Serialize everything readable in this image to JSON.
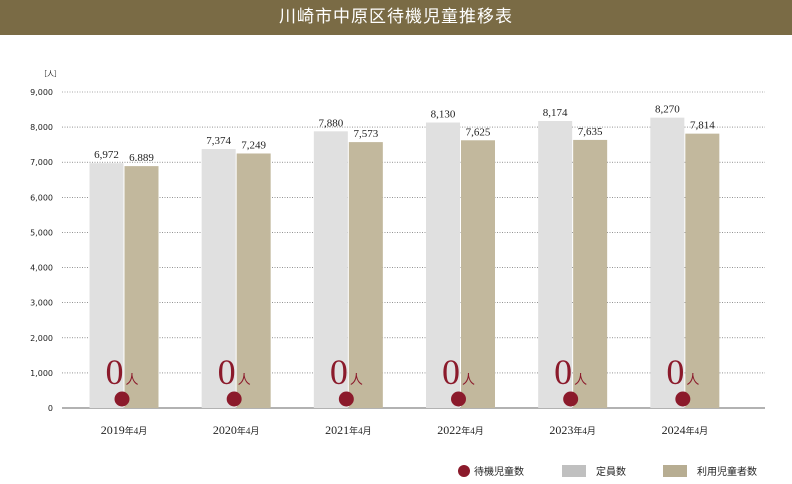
{
  "header": {
    "title": "川崎市中原区待機児童推移表"
  },
  "chart_data": {
    "type": "bar",
    "title": "川崎市中原区待機児童推移表",
    "unit": "［人］",
    "ylim": [
      0,
      9000
    ],
    "yticks": [
      "0",
      "1,000",
      "2,000",
      "3,000",
      "4,000",
      "5,000",
      "6,000",
      "7,000",
      "8,000",
      "9,000"
    ],
    "categories": [
      {
        "year": "2019",
        "suffix": "年4月"
      },
      {
        "year": "2020",
        "suffix": "年4月"
      },
      {
        "year": "2021",
        "suffix": "年4月"
      },
      {
        "year": "2022",
        "suffix": "年4月"
      },
      {
        "year": "2023",
        "suffix": "年4月"
      },
      {
        "year": "2024",
        "suffix": "年4月"
      }
    ],
    "series": [
      {
        "name": "定員数",
        "color": "#e0e0e0",
        "values": [
          6972,
          7374,
          7880,
          8130,
          8174,
          8270
        ],
        "labels": [
          "6,972",
          "7,374",
          "7,880",
          "8,130",
          "8,174",
          "8,270"
        ]
      },
      {
        "name": "利用児童者数",
        "color": "#c2b89d",
        "values": [
          6889,
          7249,
          7573,
          7625,
          7635,
          7814
        ],
        "labels": [
          "6.889",
          "7,249",
          "7,573",
          "7,625",
          "7,635",
          "7,814"
        ]
      }
    ],
    "waiting": {
      "name": "待機児童数",
      "color": "#8b1a2b",
      "values": [
        0,
        0,
        0,
        0,
        0,
        0
      ],
      "labels": [
        "0",
        "0",
        "0",
        "0",
        "0",
        "0"
      ],
      "unit": "人"
    },
    "legend": [
      {
        "name": "待機児童数",
        "shape": "circle",
        "color": "#8b1a2b"
      },
      {
        "name": "定員数",
        "shape": "rect",
        "color": "#c0c0c0"
      },
      {
        "name": "利用児童者数",
        "shape": "rect",
        "color": "#b7ad92"
      }
    ],
    "legend_position": "bottom-right",
    "grid": true
  }
}
